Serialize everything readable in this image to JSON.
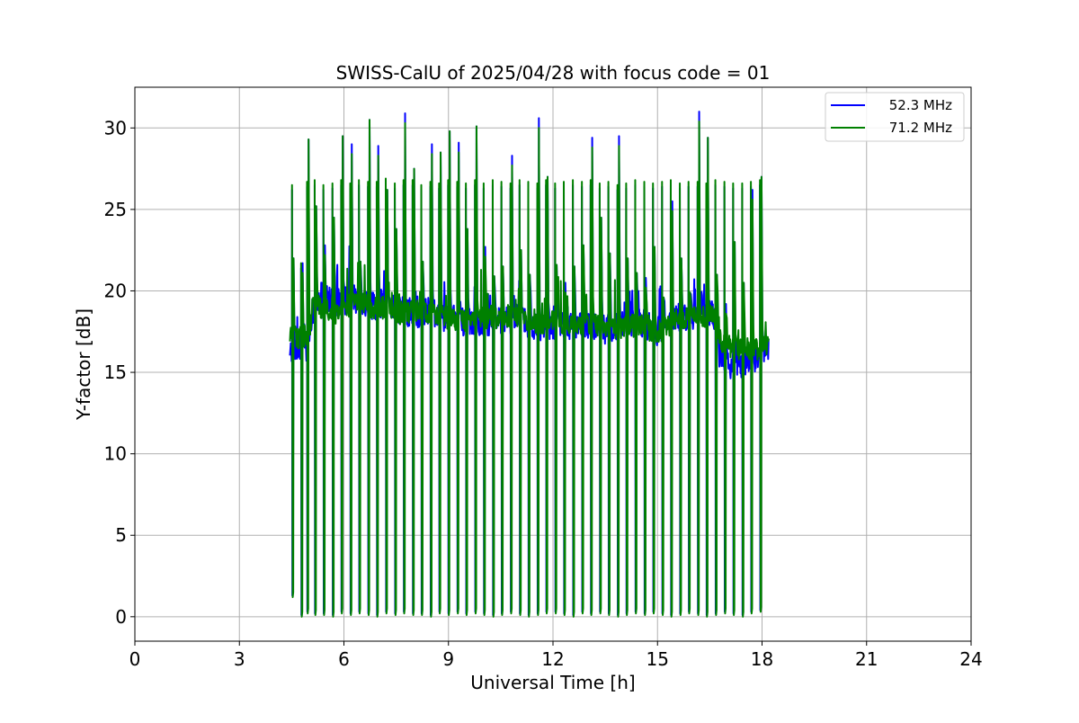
{
  "chart_data": {
    "type": "line",
    "title": "SWISS-CalU of 2025/04/28 with focus code = 01",
    "xlabel": "Universal Time [h]",
    "ylabel": "Y-factor [dB]",
    "xlim": [
      0,
      24
    ],
    "ylim": [
      -1.5,
      32.5
    ],
    "x_ticks": [
      0,
      3,
      6,
      9,
      12,
      15,
      18,
      21,
      24
    ],
    "y_ticks": [
      0,
      5,
      10,
      15,
      20,
      25,
      30
    ],
    "grid": true,
    "legend_position": "top-right",
    "series": [
      {
        "name": "52.3 MHz",
        "color": "#0000ff",
        "x": [
          4.45,
          4.5,
          4.6,
          4.75,
          5.0,
          5.1,
          5.3,
          5.6,
          5.9,
          6.2,
          6.5,
          6.8,
          7.1,
          7.5,
          8.0,
          8.5,
          9.0,
          9.5,
          10.0,
          10.5,
          11.0,
          11.5,
          12.0,
          12.5,
          13.0,
          13.5,
          14.0,
          14.5,
          15.0,
          15.5,
          16.0,
          16.5,
          16.7,
          16.8,
          17.0,
          17.5,
          17.9,
          18.2
        ],
        "y": [
          16.5,
          16.3,
          16.6,
          16.4,
          16.5,
          18.8,
          19.8,
          19.4,
          19.2,
          19.6,
          19.3,
          19.0,
          19.3,
          18.9,
          18.6,
          18.7,
          18.3,
          18.1,
          18.0,
          18.2,
          18.3,
          17.8,
          17.9,
          17.8,
          17.9,
          17.6,
          17.9,
          18.1,
          17.5,
          18.3,
          18.5,
          18.6,
          18.4,
          15.5,
          15.5,
          15.6,
          16.0,
          16.6
        ]
      },
      {
        "name": "71.2 MHz",
        "color": "#008000",
        "x": [
          4.45,
          4.5,
          4.6,
          4.75,
          5.0,
          5.1,
          5.3,
          5.6,
          5.9,
          6.2,
          6.5,
          6.8,
          7.1,
          7.5,
          8.0,
          8.5,
          9.0,
          9.5,
          10.0,
          10.5,
          11.0,
          11.5,
          12.0,
          12.5,
          13.0,
          13.5,
          14.0,
          14.5,
          15.0,
          15.5,
          16.0,
          16.5,
          16.7,
          16.8,
          17.0,
          17.5,
          17.9,
          18.2
        ],
        "y": [
          17.2,
          17.3,
          17.2,
          17.1,
          17.3,
          19.1,
          19.0,
          18.7,
          18.6,
          19.2,
          19.3,
          18.9,
          19.0,
          18.6,
          18.8,
          18.6,
          18.3,
          18.2,
          18.3,
          18.4,
          18.5,
          18.0,
          18.1,
          18.0,
          18.1,
          17.7,
          17.8,
          17.9,
          17.4,
          18.2,
          18.3,
          18.5,
          18.2,
          17.0,
          16.6,
          16.4,
          16.4,
          16.8
        ]
      }
    ],
    "calibration_dips": {
      "x": [
        4.52,
        4.78,
        4.95,
        5.17,
        5.42,
        5.68,
        5.93,
        6.19,
        6.44,
        6.7,
        6.95,
        7.21,
        7.47,
        7.72,
        7.98,
        8.23,
        8.49,
        8.74,
        9.0,
        9.26,
        9.51,
        9.77,
        10.02,
        10.28,
        10.53,
        10.79,
        11.05,
        11.3,
        11.56,
        11.81,
        12.07,
        12.32,
        12.58,
        12.84,
        13.09,
        13.35,
        13.6,
        13.86,
        14.11,
        14.37,
        14.63,
        14.88,
        15.14,
        15.39,
        15.65,
        15.9,
        16.16,
        16.41,
        16.67,
        16.93,
        17.18,
        17.44,
        17.69,
        17.95
      ],
      "pre_peak": [
        26.5,
        21.7,
        26.7,
        26.8,
        26.5,
        26.6,
        26.8,
        26.6,
        26.8,
        26.7,
        26.7,
        26.9,
        26.6,
        26.8,
        26.8,
        26.5,
        26.7,
        26.6,
        26.8,
        26.7,
        26.6,
        26.8,
        26.6,
        26.8,
        26.7,
        26.6,
        26.8,
        26.7,
        26.6,
        26.8,
        26.6,
        26.7,
        26.8,
        26.7,
        26.8,
        26.6,
        26.7,
        26.5,
        26.6,
        26.8,
        26.7,
        26.6,
        26.7,
        26.8,
        26.6,
        26.7,
        26.7,
        26.6,
        26.8,
        26.7,
        26.6,
        26.6,
        26.7,
        26.8
      ],
      "min": [
        1.2,
        0.0,
        0.2,
        0.1,
        0.1,
        0.0,
        0.2,
        0.1,
        0.2,
        0.1,
        0.0,
        0.2,
        0.1,
        0.2,
        0.1,
        0.1,
        0.0,
        0.2,
        0.1,
        0.2,
        0.1,
        0.2,
        0.1,
        0.0,
        0.1,
        0.2,
        0.1,
        0.0,
        0.1,
        0.2,
        0.2,
        0.1,
        0.0,
        0.2,
        0.1,
        0.2,
        0.1,
        0.0,
        0.1,
        0.2,
        0.1,
        0.2,
        0.1,
        0.0,
        0.1,
        0.2,
        0.1,
        0.0,
        0.1,
        0.2,
        0.1,
        0.0,
        0.2,
        0.3
      ],
      "post_peak": [
        22.0,
        21.7,
        29.3,
        25.2,
        22.8,
        24.5,
        29.5,
        29.0,
        21.8,
        30.5,
        28.9,
        26.2,
        23.8,
        30.9,
        27.5,
        21.8,
        29.0,
        28.5,
        29.8,
        29.1,
        23.8,
        30.1,
        22.7,
        20.9,
        21.5,
        28.3,
        22.5,
        21.0,
        30.6,
        27.0,
        21.6,
        20.5,
        21.5,
        22.8,
        29.4,
        24.5,
        22.3,
        29.5,
        22.0,
        21.1,
        20.8,
        22.7,
        19.6,
        25.5,
        22.0,
        19.9,
        31.0,
        29.4,
        21.0,
        19.2,
        23.0,
        20.5,
        26.2,
        27.0
      ]
    }
  }
}
